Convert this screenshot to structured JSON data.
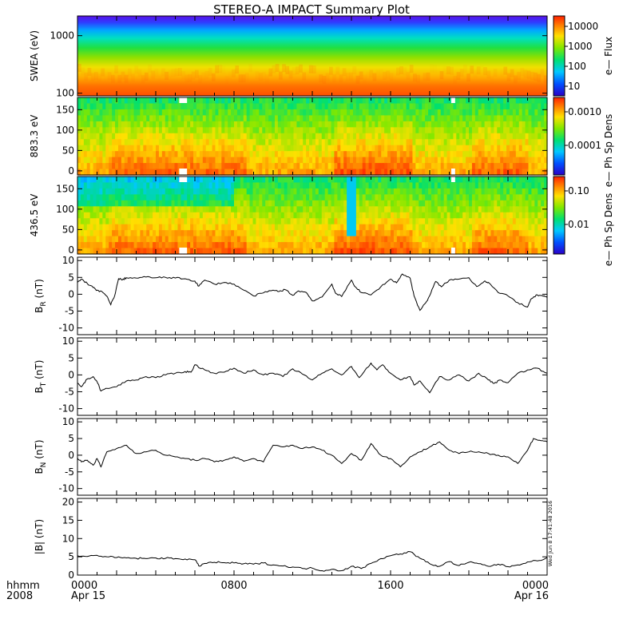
{
  "title": "STEREO-A IMPACT Summary Plot",
  "time_axis": {
    "row1_label": "hhmm",
    "row2_label": "2008",
    "ticks": [
      {
        "hour": 0,
        "top": "0000",
        "bottom": "Apr 15"
      },
      {
        "hour": 8,
        "top": "0800",
        "bottom": ""
      },
      {
        "hour": 16,
        "top": "1600",
        "bottom": ""
      },
      {
        "hour": 24,
        "top": "0000",
        "bottom": "Apr 16"
      }
    ],
    "range_hours": [
      0,
      24
    ]
  },
  "timestamp": "Wed Jun 8 17:41:48 2016",
  "spectrograms": [
    {
      "id": "swea",
      "ylabel": "SWEA (eV)",
      "scale": "log",
      "ylim": [
        90,
        2200
      ],
      "yticks": [
        "100",
        "1000"
      ],
      "ytick_values": [
        100,
        1000
      ],
      "cbar_ticks": [
        "10000",
        "1000",
        "100",
        "10"
      ],
      "cbar_title": "e— Flux"
    },
    {
      "id": "pad883",
      "ylabel": "883.3 eV",
      "scale": "linear",
      "ylim": [
        -10,
        180
      ],
      "yticks": [
        "150",
        "100",
        "50",
        "0"
      ],
      "ytick_values": [
        150,
        100,
        50,
        0
      ],
      "cbar_ticks": [
        "0.0010",
        "0.0001"
      ],
      "cbar_title": "e— Ph Sp Dens"
    },
    {
      "id": "pad436",
      "ylabel": "436.5 eV",
      "scale": "linear",
      "ylim": [
        -10,
        180
      ],
      "yticks": [
        "150",
        "100",
        "50",
        "0"
      ],
      "ytick_values": [
        150,
        100,
        50,
        0
      ],
      "cbar_ticks": [
        "0.10",
        "0.01"
      ],
      "cbar_title": "e— Ph Sp Dens"
    }
  ],
  "chart_data": [
    {
      "type": "line",
      "name": "BR",
      "ylabel_main": "B",
      "ylabel_sub": "R",
      "ylabel_unit": "(nT)",
      "ylim": [
        -12,
        11
      ],
      "yticks": [
        -10,
        -5,
        0,
        5,
        10
      ],
      "x": [
        0,
        0.2,
        0.5,
        0.8,
        1.0,
        1.3,
        1.5,
        1.7,
        1.9,
        2.1,
        2.3,
        2.5,
        3,
        3.5,
        4,
        4.5,
        5,
        5.5,
        6,
        6.2,
        6.5,
        7,
        7.5,
        8,
        8.5,
        9,
        9.5,
        10,
        10.3,
        10.6,
        11,
        11.3,
        11.7,
        12,
        12.5,
        13,
        13.2,
        13.5,
        14,
        14.2,
        14.5,
        15,
        15.5,
        16,
        16.3,
        16.6,
        17,
        17.2,
        17.5,
        17.8,
        18,
        18.3,
        18.6,
        19,
        19.5,
        20,
        20.4,
        20.8,
        21,
        21.5,
        22,
        22.5,
        23,
        23.2,
        23.5,
        23.8,
        24
      ],
      "y": [
        3.5,
        4.5,
        3.2,
        2.0,
        1.2,
        0.5,
        -0.6,
        -3.1,
        -0.4,
        4.6,
        4.3,
        4.9,
        4.8,
        5.1,
        4.9,
        5.0,
        4.8,
        4.6,
        3.9,
        2.4,
        4.2,
        3.0,
        3.5,
        3.0,
        1.2,
        -0.5,
        0.4,
        1.2,
        0.8,
        1.4,
        -0.3,
        1.0,
        0.5,
        -2.0,
        -0.8,
        3.0,
        0.2,
        -0.7,
        4.2,
        2.2,
        0.5,
        -0.2,
        2.2,
        4.5,
        3.4,
        6.0,
        4.8,
        -0.5,
        -4.8,
        -2.5,
        -0.4,
        3.8,
        2.2,
        4.2,
        4.5,
        4.9,
        2.3,
        3.9,
        3.5,
        0.5,
        -0.5,
        -2.5,
        -3.8,
        -1.3,
        -0.2,
        -0.6,
        -1.0
      ]
    },
    {
      "type": "line",
      "name": "BT",
      "ylabel_main": "B",
      "ylabel_sub": "T",
      "ylabel_unit": "(nT)",
      "ylim": [
        -12,
        11
      ],
      "yticks": [
        -10,
        -5,
        0,
        5,
        10
      ],
      "x": [
        0,
        0.2,
        0.5,
        0.8,
        1.0,
        1.2,
        1.5,
        2,
        2.5,
        3,
        3.5,
        4,
        4.5,
        5,
        5.5,
        5.8,
        6,
        6.5,
        7,
        7.5,
        8,
        8.5,
        9,
        9.5,
        10,
        10.5,
        11,
        11.5,
        12,
        12.5,
        13,
        13.5,
        14,
        14.4,
        15,
        15.3,
        15.6,
        16,
        16.5,
        17,
        17.2,
        17.5,
        18,
        18.5,
        19,
        19.5,
        20,
        20.5,
        21,
        21.3,
        21.6,
        22,
        22.5,
        23,
        23.5,
        24
      ],
      "y": [
        -2.5,
        -3.5,
        -1.2,
        -0.5,
        -2.0,
        -4.8,
        -4.0,
        -3.5,
        -1.8,
        -1.5,
        -0.5,
        -0.8,
        0.0,
        0.5,
        1.0,
        0.8,
        3.0,
        1.5,
        0.5,
        0.8,
        2.0,
        0.5,
        1.5,
        0.0,
        0.5,
        -0.5,
        1.8,
        0.2,
        -1.5,
        0.5,
        1.8,
        0.0,
        2.5,
        -0.8,
        3.5,
        1.5,
        3.0,
        0.5,
        -1.5,
        -0.5,
        -3.0,
        -1.8,
        -5.3,
        -0.5,
        -1.5,
        0.0,
        -1.8,
        0.5,
        -1.5,
        -2.5,
        -1.5,
        -2.3,
        0.5,
        1.5,
        2.0,
        0.5
      ]
    },
    {
      "type": "line",
      "name": "BN",
      "ylabel_main": "B",
      "ylabel_sub": "N",
      "ylabel_unit": "(nT)",
      "ylim": [
        -12,
        11
      ],
      "yticks": [
        -10,
        -5,
        0,
        5,
        10
      ],
      "x": [
        0,
        0.2,
        0.5,
        0.8,
        1.0,
        1.2,
        1.5,
        2,
        2.5,
        3,
        3.5,
        4,
        4.5,
        5,
        5.5,
        6,
        6.5,
        7,
        7.5,
        8,
        8.5,
        9,
        9.5,
        10,
        10.5,
        11,
        11.5,
        12,
        12.5,
        13,
        13.5,
        14,
        14.5,
        15,
        15.5,
        16,
        16.5,
        17,
        17.5,
        18,
        18.5,
        19,
        19.5,
        20,
        20.5,
        21,
        21.5,
        22,
        22.5,
        23,
        23.3,
        23.6,
        24
      ],
      "y": [
        -0.8,
        -2.0,
        -1.5,
        -3.0,
        -1.0,
        -3.5,
        1.0,
        2.0,
        3.0,
        0.5,
        1.0,
        1.5,
        0.0,
        -0.5,
        -1.0,
        -1.5,
        -1.0,
        -2.0,
        -1.5,
        -0.5,
        -1.8,
        -1.0,
        -2.0,
        3.0,
        2.5,
        3.0,
        2.0,
        2.5,
        1.5,
        0.0,
        -2.5,
        0.5,
        -1.5,
        3.5,
        0.0,
        -1.0,
        -3.5,
        -0.5,
        1.0,
        2.5,
        4.0,
        1.5,
        0.5,
        1.0,
        1.0,
        0.5,
        0.0,
        -0.5,
        -2.5,
        1.5,
        5.0,
        4.5,
        4.0
      ]
    },
    {
      "type": "line",
      "name": "|B|",
      "ylabel_main": "|B|",
      "ylabel_sub": "",
      "ylabel_unit": "(nT)",
      "ylim": [
        0,
        21
      ],
      "yticks": [
        0,
        5,
        10,
        15,
        20
      ],
      "x": [
        0,
        0.5,
        1,
        1.5,
        2,
        2.5,
        3,
        3.5,
        4,
        4.5,
        5,
        5.5,
        6,
        6.2,
        6.5,
        7,
        7.5,
        8,
        8.5,
        9,
        9.5,
        10,
        10.5,
        11,
        11.5,
        12,
        12.5,
        13,
        13.5,
        14,
        14.5,
        15,
        15.5,
        16,
        16.5,
        17,
        17.5,
        18,
        18.5,
        19,
        19.5,
        20,
        20.5,
        21,
        21.5,
        22,
        22.5,
        23,
        23.5,
        24
      ],
      "y": [
        5.3,
        5.1,
        5.4,
        5.0,
        4.8,
        4.7,
        4.6,
        4.5,
        4.7,
        4.6,
        4.5,
        4.4,
        4.2,
        2.5,
        3.2,
        3.5,
        3.4,
        3.3,
        3.1,
        3.0,
        3.3,
        2.8,
        2.5,
        2.2,
        1.8,
        1.9,
        1.2,
        1.6,
        1.2,
        2.4,
        1.8,
        3.2,
        4.5,
        5.3,
        5.8,
        6.4,
        4.6,
        3.1,
        2.4,
        3.7,
        2.6,
        3.5,
        3.1,
        2.4,
        3.0,
        2.3,
        2.8,
        3.6,
        3.9,
        4.8
      ]
    }
  ]
}
